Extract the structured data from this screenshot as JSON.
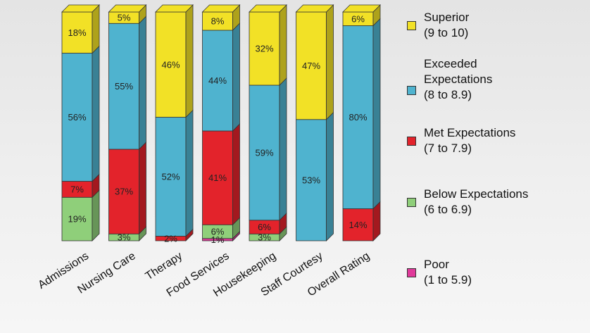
{
  "chart_data": {
    "type": "bar",
    "stacked": true,
    "categories": [
      "Admissions",
      "Nursing Care",
      "Therapy",
      "Food Services",
      "Housekeeping",
      "Staff Courtesy",
      "Overall Rating"
    ],
    "series": [
      {
        "name": "Poor (1 to 5.9)",
        "color": "#e0399a",
        "values": [
          0,
          0,
          0,
          1,
          0,
          0,
          0
        ],
        "labels": [
          "",
          "",
          "",
          "1%",
          "",
          "",
          ""
        ]
      },
      {
        "name": "Below Expectations (6 to 6.9)",
        "color": "#8fcf7a",
        "values": [
          19,
          3,
          0,
          6,
          3,
          0,
          0
        ],
        "labels": [
          "19%",
          "3%",
          "",
          "6%",
          "3%",
          "",
          ""
        ]
      },
      {
        "name": "Met Expectations (7 to 7.9)",
        "color": "#e3232b",
        "values": [
          7,
          37,
          2,
          41,
          6,
          0,
          14
        ],
        "labels": [
          "7%",
          "37%",
          "2%",
          "41%",
          "6%",
          "",
          "14%"
        ]
      },
      {
        "name": "Exceeded Expectations (8 to 8.9)",
        "color": "#4fb3cf",
        "values": [
          56,
          55,
          52,
          44,
          59,
          53,
          80
        ],
        "labels": [
          "56%",
          "55%",
          "52%",
          "44%",
          "59%",
          "53%",
          "80%"
        ]
      },
      {
        "name": "Superior (9 to 10)",
        "color": "#f2e126",
        "values": [
          18,
          5,
          46,
          8,
          32,
          47,
          6
        ],
        "labels": [
          "18%",
          "5%",
          "46%",
          "8%",
          "32%",
          "47%",
          "6%"
        ]
      }
    ],
    "ylim": [
      0,
      100
    ],
    "grid": false,
    "legend_position": "right"
  },
  "legend": [
    {
      "label": "Superior\n(9 to 10)",
      "color": "#f2e126"
    },
    {
      "label": "Exceeded\nExpectations\n(8 to 8.9)",
      "color": "#4fb3cf"
    },
    {
      "label": "Met Expectations\n(7 to 7.9)",
      "color": "#e3232b"
    },
    {
      "label": "Below Expectations\n(6 to 6.9)",
      "color": "#8fcf7a"
    },
    {
      "label": "Poor\n(1 to 5.9)",
      "color": "#e0399a"
    }
  ]
}
